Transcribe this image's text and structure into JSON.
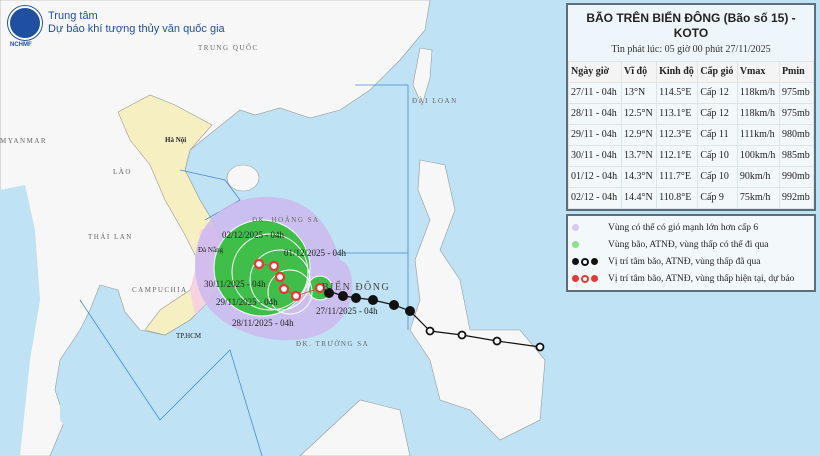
{
  "header": {
    "org_line1": "Trung tâm",
    "org_line2": "Dự báo khí tượng thủy văn quốc gia",
    "logo_text": "NCHMF"
  },
  "panel": {
    "title": "BÃO TRÊN BIỂN ĐÔNG (Bão số 15) - KOTO",
    "issued": "Tin phát lúc: 05 giờ 00 phút 27/11/2025",
    "columns": [
      "Ngày giờ",
      "Vĩ độ",
      "Kinh độ",
      "Cấp gió",
      "Vmax",
      "Pmin"
    ],
    "rows": [
      [
        "27/11 - 04h",
        "13°N",
        "114.5°E",
        "Cấp 12",
        "118km/h",
        "975mb"
      ],
      [
        "28/11 - 04h",
        "12.5°N",
        "113.1°E",
        "Cấp 12",
        "118km/h",
        "975mb"
      ],
      [
        "29/11 - 04h",
        "12.9°N",
        "112.3°E",
        "Cấp 11",
        "111km/h",
        "980mb"
      ],
      [
        "30/11 - 04h",
        "13.7°N",
        "112.1°E",
        "Cấp 10",
        "100km/h",
        "985mb"
      ],
      [
        "01/12 - 04h",
        "14.3°N",
        "111.7°E",
        "Cấp 10",
        "90km/h",
        "990mb"
      ],
      [
        "02/12 - 04h",
        "14.4°N",
        "110.8°E",
        "Cấp 9",
        "75km/h",
        "992mb"
      ]
    ]
  },
  "legend": [
    {
      "text": "Vùng có thể có gió mạnh lớn hơn cấp 6",
      "color": "#d9c9f0"
    },
    {
      "text": "Vùng bão, ATNĐ, vùng thấp có thể đi qua",
      "color": "#8ee08a"
    },
    {
      "text": "Vị trí tâm bão, ATNĐ, vùng thấp đã qua",
      "color": "#111111"
    },
    {
      "text": "Vị trí tâm bão, ATNĐ, vùng thấp hiện tại, dự báo",
      "color": "#e53935"
    }
  ],
  "map_labels": {
    "china": "TRUNG QUỐC",
    "taiwan": "ĐÀI LOAN",
    "myanmar": "MYANMAR",
    "laos": "LÀO",
    "thailand": "THÁI LAN",
    "cambodia": "CAMPUCHIA",
    "hanoi": "Hà Nội",
    "danang": "Đà Nẵng",
    "hcm": "TP.HCM",
    "paracel": "ĐK. HOÀNG SA",
    "sea": "BIỂN ĐÔNG",
    "spratly": "ĐK. TRƯỜNG SA"
  },
  "forecast_labels": [
    "27/11/2025 - 04h",
    "28/11/2025 - 04h",
    "29/11/2025 - 04h",
    "30/11/2025 - 04h",
    "01/12/2025 - 04h",
    "02/12/2025 - 04h"
  ]
}
